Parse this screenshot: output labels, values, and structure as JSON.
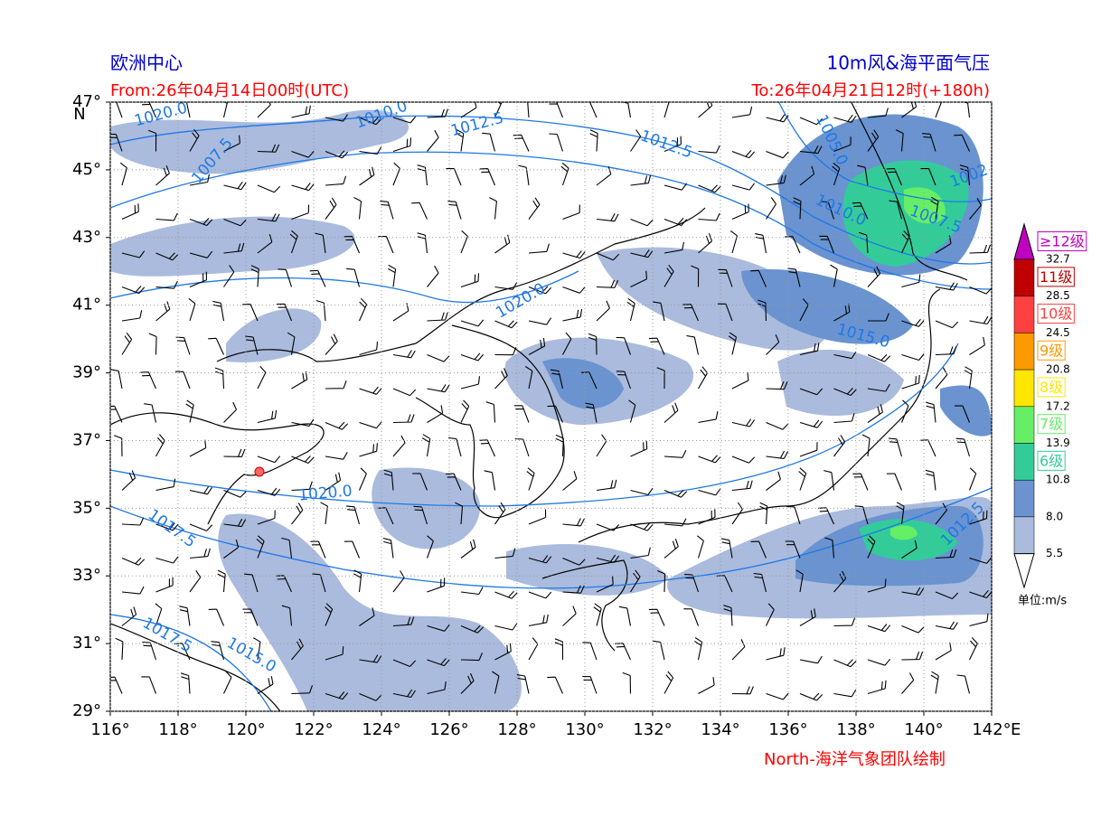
{
  "header": {
    "left_title": "欧洲中心",
    "right_title": "10m风&海平面气压",
    "from": "From:26年04月14日00时(UTC)",
    "to": "To:26年04月21日12时(+180h)"
  },
  "map": {
    "x_ticks": [
      "116°",
      "118°",
      "120°",
      "122°",
      "124°",
      "126°",
      "128°",
      "130°",
      "132°",
      "134°",
      "136°",
      "138°",
      "140°",
      "142°"
    ],
    "x_unit": "E",
    "y_ticks": [
      "47°",
      "45°",
      "43°",
      "41°",
      "39°",
      "37°",
      "35°",
      "33°",
      "31°",
      "29°"
    ],
    "y_unit": "N",
    "isobar_labels": [
      "1020.0",
      "1010.0",
      "1012.5",
      "1012.5",
      "1007.5",
      "1005.0",
      "1002",
      "1010.0",
      "1007.5",
      "1020.0",
      "1015.0",
      "1020.0",
      "1017.5",
      "1012.5",
      "1017.5",
      "1015.0"
    ]
  },
  "legend": {
    "bands": [
      {
        "color": "#c000c0",
        "label": "≥12级"
      },
      {
        "color": "#c00000",
        "label": "11级"
      },
      {
        "color": "#ff4040",
        "label": "10级"
      },
      {
        "color": "#ff9900",
        "label": "9级"
      },
      {
        "color": "#ffe600",
        "label": "8级"
      },
      {
        "color": "#66ee66",
        "label": "7级"
      },
      {
        "color": "#33cc99",
        "label": "6级"
      },
      {
        "color": "#6a93d0"
      },
      {
        "color": "#aabbdd"
      }
    ],
    "thresholds": [
      "32.7",
      "28.5",
      "24.5",
      "20.8",
      "17.2",
      "13.9",
      "10.8",
      "8.0",
      "5.5"
    ],
    "unit": "单位:m/s"
  },
  "footer": "North-海洋气象团队绘制"
}
